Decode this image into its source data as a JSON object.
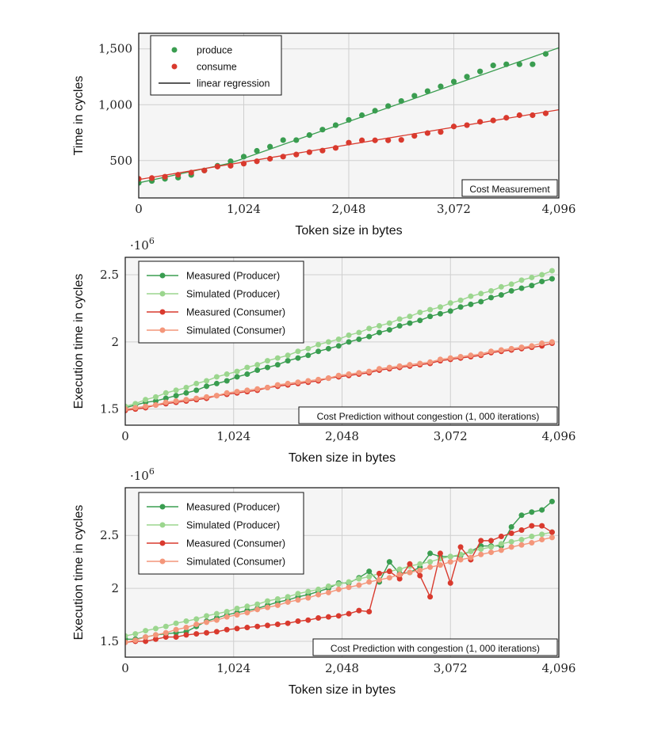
{
  "chart_data": [
    {
      "type": "scatter",
      "annotation": "Cost Measurement",
      "xlabel": "Token size in bytes",
      "ylabel": "Time in cycles",
      "xlim": [
        0,
        4096
      ],
      "ylim": [
        165,
        1640
      ],
      "xticks": [
        0,
        1024,
        2048,
        3072,
        4096
      ],
      "xtick_labels": [
        "0",
        "1,024",
        "2,048",
        "3,072",
        "4,096"
      ],
      "yticks": [
        500,
        1000,
        1500
      ],
      "ytick_labels": [
        "500",
        "1,000",
        "1,500"
      ],
      "grid": true,
      "legend_position": "top-left",
      "x": [
        0,
        128,
        256,
        384,
        512,
        640,
        768,
        896,
        1024,
        1152,
        1280,
        1408,
        1536,
        1664,
        1792,
        1920,
        2048,
        2176,
        2304,
        2432,
        2560,
        2688,
        2816,
        2944,
        3072,
        3200,
        3328,
        3456,
        3584,
        3712,
        3840,
        3968
      ],
      "series": [
        {
          "name": "produce",
          "color": "#3a9d50",
          "style": "markers",
          "values": [
            300,
            317,
            336,
            347,
            371,
            411,
            453,
            493,
            535,
            587,
            624,
            683,
            683,
            728,
            777,
            817,
            864,
            906,
            946,
            988,
            1033,
            1080,
            1122,
            1164,
            1207,
            1251,
            1298,
            1352,
            1362,
            1362,
            1362,
            1455
          ]
        },
        {
          "name": "consume",
          "color": "#d93a2e",
          "style": "markers",
          "values": [
            336,
            343,
            355,
            373,
            392,
            411,
            446,
            453,
            472,
            493,
            516,
            535,
            554,
            575,
            589,
            613,
            660,
            681,
            681,
            681,
            685,
            721,
            746,
            756,
            805,
            817,
            847,
            859,
            883,
            906,
            906,
            923
          ]
        }
      ],
      "regression": [
        {
          "name": "linear regression",
          "legend_color": "#222222",
          "color": "#3a9d50",
          "points": [
            [
              0,
              300
            ],
            [
              896,
              478
            ],
            [
              4096,
              1510
            ]
          ]
        },
        {
          "color": "#d93a2e",
          "points": [
            [
              0,
              330
            ],
            [
              4096,
              955
            ]
          ]
        }
      ]
    },
    {
      "type": "line",
      "annotation": "Cost Prediction without congestion (1, 000 iterations)",
      "multiplier": "·10",
      "multiplier_exp": "6",
      "xlabel": "Token size in bytes",
      "ylabel": "Execution time in cycles",
      "xlim": [
        0,
        4096
      ],
      "ylim": [
        1.38,
        2.63
      ],
      "xticks": [
        0,
        1024,
        2048,
        3072,
        4096
      ],
      "xtick_labels": [
        "0",
        "1,024",
        "2,048",
        "3,072",
        "4,096"
      ],
      "yticks": [
        1.5,
        2,
        2.5
      ],
      "ytick_labels": [
        "1.5",
        "2",
        "2.5"
      ],
      "grid": true,
      "legend_position": "top-left",
      "x_step": 96,
      "series": [
        {
          "name": "Measured (Producer)",
          "color": "#3a9d50",
          "values": [
            1.51,
            1.53,
            1.55,
            1.56,
            1.58,
            1.6,
            1.62,
            1.64,
            1.67,
            1.69,
            1.71,
            1.74,
            1.76,
            1.79,
            1.81,
            1.83,
            1.86,
            1.88,
            1.9,
            1.93,
            1.95,
            1.97,
            2.0,
            2.02,
            2.04,
            2.07,
            2.09,
            2.12,
            2.14,
            2.16,
            2.19,
            2.21,
            2.23,
            2.26,
            2.28,
            2.3,
            2.33,
            2.35,
            2.38,
            2.4,
            2.42,
            2.45,
            2.47
          ]
        },
        {
          "name": "Simulated (Producer)",
          "color": "#9bd68e",
          "values": [
            1.52,
            1.54,
            1.57,
            1.59,
            1.62,
            1.64,
            1.66,
            1.69,
            1.71,
            1.74,
            1.76,
            1.78,
            1.81,
            1.83,
            1.86,
            1.88,
            1.9,
            1.93,
            1.95,
            1.98,
            2.0,
            2.02,
            2.05,
            2.07,
            2.1,
            2.12,
            2.14,
            2.17,
            2.19,
            2.22,
            2.24,
            2.26,
            2.29,
            2.31,
            2.34,
            2.36,
            2.38,
            2.41,
            2.43,
            2.46,
            2.48,
            2.5,
            2.53
          ]
        },
        {
          "name": "Measured (Consumer)",
          "color": "#d93a2e",
          "values": [
            1.49,
            1.5,
            1.51,
            1.53,
            1.54,
            1.55,
            1.56,
            1.57,
            1.58,
            1.6,
            1.61,
            1.62,
            1.63,
            1.64,
            1.66,
            1.67,
            1.68,
            1.69,
            1.7,
            1.71,
            1.73,
            1.74,
            1.75,
            1.76,
            1.77,
            1.79,
            1.8,
            1.81,
            1.82,
            1.83,
            1.84,
            1.86,
            1.87,
            1.88,
            1.89,
            1.9,
            1.92,
            1.93,
            1.94,
            1.95,
            1.96,
            1.97,
            1.99
          ]
        },
        {
          "name": "Simulated (Consumer)",
          "color": "#f4967a",
          "values": [
            1.5,
            1.51,
            1.52,
            1.53,
            1.55,
            1.56,
            1.57,
            1.58,
            1.59,
            1.6,
            1.62,
            1.63,
            1.64,
            1.65,
            1.66,
            1.68,
            1.69,
            1.7,
            1.71,
            1.72,
            1.73,
            1.75,
            1.76,
            1.77,
            1.78,
            1.8,
            1.81,
            1.82,
            1.83,
            1.84,
            1.85,
            1.87,
            1.88,
            1.89,
            1.9,
            1.91,
            1.93,
            1.94,
            1.95,
            1.96,
            1.97,
            1.99,
            2.0
          ]
        }
      ]
    },
    {
      "type": "line",
      "annotation": "Cost Prediction with congestion (1, 000 iterations)",
      "multiplier": "·10",
      "multiplier_exp": "6",
      "xlabel": "Token size in bytes",
      "ylabel": "Execution time in cycles",
      "xlim": [
        0,
        4096
      ],
      "ylim": [
        1.35,
        2.95
      ],
      "xticks": [
        0,
        1024,
        2048,
        3072,
        4096
      ],
      "xtick_labels": [
        "0",
        "1,024",
        "2,048",
        "3,072",
        "4,096"
      ],
      "yticks": [
        1.5,
        2,
        2.5
      ],
      "ytick_labels": [
        "1.5",
        "2",
        "2.5"
      ],
      "grid": true,
      "legend_position": "top-left",
      "x_step": 96,
      "series": [
        {
          "name": "Measured (Producer)",
          "color": "#3a9d50",
          "values": [
            1.52,
            1.52,
            1.54,
            1.56,
            1.57,
            1.58,
            1.59,
            1.64,
            1.69,
            1.72,
            1.75,
            1.77,
            1.79,
            1.81,
            1.84,
            1.87,
            1.89,
            1.92,
            1.94,
            1.97,
            2.0,
            2.05,
            2.05,
            2.1,
            2.16,
            2.06,
            2.25,
            2.14,
            2.15,
            2.2,
            2.33,
            2.3,
            2.3,
            2.31,
            2.35,
            2.4,
            2.4,
            2.4,
            2.58,
            2.69,
            2.72,
            2.74,
            2.82
          ]
        },
        {
          "name": "Simulated (Producer)",
          "color": "#9bd68e",
          "values": [
            1.55,
            1.57,
            1.6,
            1.62,
            1.64,
            1.67,
            1.69,
            1.71,
            1.74,
            1.76,
            1.78,
            1.81,
            1.83,
            1.85,
            1.88,
            1.9,
            1.92,
            1.95,
            1.97,
            1.99,
            2.02,
            2.04,
            2.06,
            2.09,
            2.11,
            2.14,
            2.16,
            2.18,
            2.21,
            2.23,
            2.25,
            2.28,
            2.3,
            2.32,
            2.35,
            2.37,
            2.39,
            2.42,
            2.44,
            2.46,
            2.49,
            2.51,
            2.53
          ]
        },
        {
          "name": "Measured (Consumer)",
          "color": "#d93a2e",
          "values": [
            1.49,
            1.5,
            1.5,
            1.52,
            1.54,
            1.54,
            1.56,
            1.57,
            1.58,
            1.59,
            1.61,
            1.62,
            1.63,
            1.64,
            1.65,
            1.66,
            1.67,
            1.69,
            1.7,
            1.72,
            1.73,
            1.74,
            1.76,
            1.79,
            1.78,
            2.14,
            2.16,
            2.09,
            2.23,
            2.12,
            1.92,
            2.33,
            2.05,
            2.39,
            2.27,
            2.45,
            2.45,
            2.49,
            2.52,
            2.55,
            2.59,
            2.59,
            2.53
          ]
        },
        {
          "name": "Simulated (Consumer)",
          "color": "#f4967a",
          "values": [
            1.49,
            1.51,
            1.54,
            1.56,
            1.58,
            1.61,
            1.63,
            1.66,
            1.68,
            1.7,
            1.73,
            1.75,
            1.77,
            1.8,
            1.82,
            1.84,
            1.87,
            1.89,
            1.91,
            1.94,
            1.96,
            1.99,
            2.01,
            2.03,
            2.06,
            2.08,
            2.1,
            2.13,
            2.15,
            2.17,
            2.2,
            2.22,
            2.25,
            2.27,
            2.29,
            2.32,
            2.34,
            2.36,
            2.39,
            2.41,
            2.43,
            2.46,
            2.48
          ]
        }
      ]
    }
  ]
}
